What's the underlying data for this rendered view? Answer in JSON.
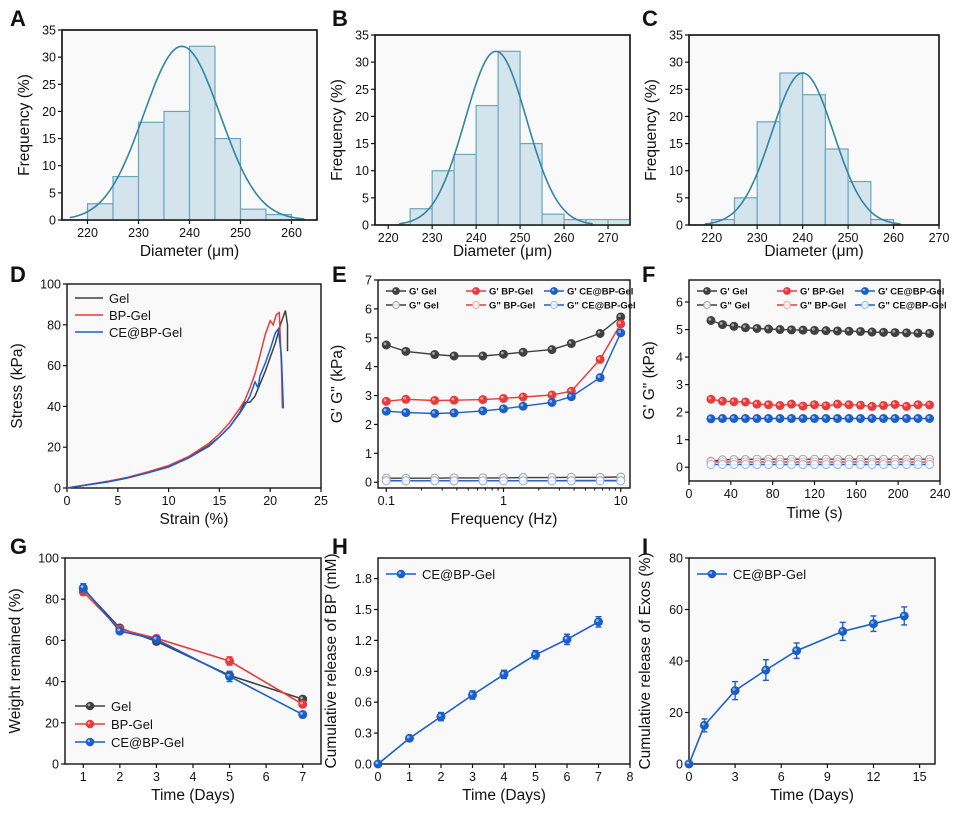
{
  "figure": {
    "panel_labels": [
      "A",
      "B",
      "C",
      "D",
      "E",
      "F",
      "G",
      "H",
      "I"
    ]
  },
  "colors": {
    "hist_fill": "#d3e4ec",
    "hist_edge": "#6aa6bd",
    "fit_curve": "#2f86a6",
    "gel": "#404040",
    "bp_gel": "#e83b3b",
    "ce_bp_gel": "#1b5fc9",
    "plot_bg": "#f9f9f9"
  },
  "chart_data": [
    {
      "id": "A",
      "type": "bar",
      "xlabel": "Diameter (μm)",
      "ylabel": "Frequency (%)",
      "xlim": [
        215,
        265
      ],
      "ylim": [
        0,
        35
      ],
      "xticks": [
        220,
        230,
        240,
        250,
        260
      ],
      "yticks": [
        0,
        5,
        10,
        15,
        20,
        25,
        30,
        35
      ],
      "bin_width": 5,
      "bins": [
        220,
        225,
        230,
        235,
        240,
        245,
        250,
        255
      ],
      "values": [
        3,
        8,
        18,
        20,
        32,
        15,
        2,
        1
      ],
      "fit": {
        "type": "gaussian",
        "mean": 238.5,
        "sd": 7.5,
        "peak": 32
      }
    },
    {
      "id": "B",
      "type": "bar",
      "xlabel": "Diameter (μm)",
      "ylabel": "Frequency (%)",
      "xlim": [
        217,
        275
      ],
      "ylim": [
        0,
        35
      ],
      "xticks": [
        220,
        230,
        240,
        250,
        260,
        270
      ],
      "yticks": [
        0,
        5,
        10,
        15,
        20,
        25,
        30,
        35
      ],
      "bin_width": 5,
      "bins": [
        225,
        230,
        235,
        240,
        245,
        250,
        255,
        260,
        265,
        270
      ],
      "values": [
        3,
        10,
        13,
        22,
        32,
        15,
        2,
        1,
        1,
        1
      ],
      "fit": {
        "type": "gaussian",
        "mean": 244.5,
        "sd": 7.0,
        "peak": 32
      }
    },
    {
      "id": "C",
      "type": "bar",
      "xlabel": "Diameter (μm)",
      "ylabel": "Frequency (%)",
      "xlim": [
        215,
        270
      ],
      "ylim": [
        0,
        35
      ],
      "xticks": [
        220,
        230,
        240,
        250,
        260,
        270
      ],
      "yticks": [
        0,
        5,
        10,
        15,
        20,
        25,
        30,
        35
      ],
      "bin_width": 5,
      "bins": [
        220,
        225,
        230,
        235,
        240,
        245,
        250,
        255
      ],
      "values": [
        1,
        5,
        19,
        28,
        24,
        14,
        8,
        1
      ],
      "fit": {
        "type": "gaussian",
        "mean": 240,
        "sd": 6.8,
        "peak": 28
      }
    },
    {
      "id": "D",
      "type": "line",
      "xlabel": "Strain (%)",
      "ylabel": "Stress (kPa)",
      "xlim": [
        0,
        25
      ],
      "ylim": [
        0,
        100
      ],
      "xticks": [
        0,
        5,
        10,
        15,
        20,
        25
      ],
      "yticks": [
        0,
        20,
        40,
        60,
        80,
        100
      ],
      "legend": "top-left",
      "series": [
        {
          "name": "Gel",
          "color_key": "gel",
          "x": [
            0,
            2,
            4,
            6,
            8,
            10,
            12,
            14,
            15,
            16,
            17,
            17.5,
            18,
            18.5,
            19,
            19.5,
            20,
            20.5,
            21,
            21.5,
            21.7,
            21.7
          ],
          "y": [
            0,
            1.5,
            3,
            5,
            7.5,
            10.5,
            15,
            21,
            25,
            30,
            37,
            42,
            42,
            45,
            51,
            57,
            64,
            71,
            80,
            87,
            80,
            67
          ]
        },
        {
          "name": "BP-Gel",
          "color_key": "bp_gel",
          "x": [
            0,
            2,
            4,
            6,
            8,
            10,
            12,
            14,
            15,
            16,
            17,
            17.5,
            18,
            18.5,
            19,
            19.5,
            20,
            20.3,
            20.6,
            20.9,
            21.1,
            21.2
          ],
          "y": [
            0,
            1.6,
            3.3,
            5.3,
            8,
            11,
            15.5,
            22,
            26.5,
            32,
            39,
            43,
            49,
            56,
            65,
            75,
            82,
            80,
            85,
            86,
            60,
            39
          ]
        },
        {
          "name": "CE@BP-Gel",
          "color_key": "ce_bp_gel",
          "x": [
            0,
            2,
            4,
            6,
            8,
            10,
            12,
            14,
            15,
            16,
            17,
            17.5,
            18,
            18.5,
            18.8,
            19,
            19.5,
            20,
            20.5,
            20.8,
            21.1,
            21.3
          ],
          "y": [
            0,
            1.5,
            3,
            5,
            7.5,
            10.3,
            14.8,
            20.5,
            25,
            30,
            36.5,
            40.5,
            45,
            52,
            49,
            55,
            61,
            68,
            76,
            78,
            65,
            39
          ]
        }
      ]
    },
    {
      "id": "E",
      "type": "line",
      "xlabel": "Frequency (Hz)",
      "ylabel": "G' G\" (kPa)",
      "xscale": "log",
      "xlim": [
        0.085,
        12
      ],
      "ylim": [
        -0.2,
        7
      ],
      "xticks": [
        0.1,
        1,
        10
      ],
      "xticklabels": [
        "0.1",
        "1",
        "10"
      ],
      "yticks": [
        0,
        1,
        2,
        3,
        4,
        5,
        6,
        7
      ],
      "legend": "top (2 rows)",
      "x": [
        0.1,
        0.147,
        0.259,
        0.379,
        0.667,
        1.0,
        1.47,
        2.59,
        3.79,
        6.67,
        10.0
      ],
      "series": [
        {
          "name": "G'  Gel",
          "color_key": "gel",
          "filled": true,
          "values": [
            4.75,
            4.53,
            4.42,
            4.37,
            4.37,
            4.43,
            4.5,
            4.59,
            4.8,
            5.15,
            5.72
          ]
        },
        {
          "name": "G'  BP-Gel",
          "color_key": "bp_gel",
          "filled": true,
          "values": [
            2.8,
            2.87,
            2.83,
            2.84,
            2.86,
            2.9,
            2.95,
            3.02,
            3.15,
            4.25,
            5.48
          ]
        },
        {
          "name": "G'  CE@BP-Gel",
          "color_key": "ce_bp_gel",
          "filled": true,
          "values": [
            2.46,
            2.41,
            2.38,
            2.4,
            2.47,
            2.54,
            2.63,
            2.76,
            2.96,
            3.62,
            5.17
          ]
        },
        {
          "name": "G\" Gel",
          "color_key": "gel",
          "filled": false,
          "values": [
            0.14,
            0.14,
            0.14,
            0.15,
            0.15,
            0.15,
            0.16,
            0.16,
            0.17,
            0.17,
            0.18
          ]
        },
        {
          "name": "G\" BP-Gel",
          "color_key": "bp_gel",
          "filled": false,
          "values": [
            0.06,
            0.05,
            0.05,
            0.05,
            0.05,
            0.05,
            0.05,
            0.05,
            0.06,
            0.06,
            0.06
          ]
        },
        {
          "name": "G\" CE@BP-Gel",
          "color_key": "ce_bp_gel",
          "filled": false,
          "values": [
            0.05,
            0.05,
            0.05,
            0.05,
            0.05,
            0.05,
            0.05,
            0.05,
            0.05,
            0.05,
            0.05
          ]
        }
      ]
    },
    {
      "id": "F",
      "type": "line",
      "xlabel": "Time (s)",
      "ylabel": "G' G\" (kPa)",
      "xlim": [
        0,
        240
      ],
      "ylim": [
        -0.5,
        6.8
      ],
      "xticks": [
        0,
        40,
        80,
        120,
        160,
        200,
        240
      ],
      "yticks": [
        0,
        1,
        2,
        3,
        4,
        5,
        6
      ],
      "legend": "top (2 rows)",
      "x": [
        21,
        32,
        43,
        54,
        65,
        76,
        87,
        98,
        109,
        120,
        131,
        142,
        153,
        164,
        175,
        186,
        197,
        208,
        219,
        230
      ],
      "series": [
        {
          "name": "G'  Gel",
          "color_key": "gel",
          "filled": true,
          "values": [
            5.33,
            5.18,
            5.12,
            5.07,
            5.04,
            5.02,
            5.0,
            4.99,
            4.98,
            4.97,
            4.96,
            4.95,
            4.94,
            4.93,
            4.91,
            4.9,
            4.89,
            4.88,
            4.87,
            4.86
          ]
        },
        {
          "name": "G'  BP-Gel",
          "color_key": "bp_gel",
          "filled": true,
          "values": [
            2.47,
            2.4,
            2.38,
            2.37,
            2.29,
            2.27,
            2.24,
            2.29,
            2.22,
            2.27,
            2.23,
            2.29,
            2.27,
            2.25,
            2.21,
            2.24,
            2.28,
            2.21,
            2.27,
            2.26
          ]
        },
        {
          "name": "G'  CE@BP-Gel",
          "color_key": "ce_bp_gel",
          "filled": true,
          "values": [
            1.76,
            1.77,
            1.77,
            1.77,
            1.77,
            1.77,
            1.77,
            1.77,
            1.77,
            1.77,
            1.77,
            1.77,
            1.77,
            1.77,
            1.77,
            1.77,
            1.77,
            1.77,
            1.77,
            1.77
          ]
        },
        {
          "name": "G\" Gel",
          "color_key": "gel",
          "filled": false,
          "values": [
            0.22,
            0.27,
            0.28,
            0.28,
            0.29,
            0.29,
            0.29,
            0.29,
            0.29,
            0.29,
            0.29,
            0.29,
            0.29,
            0.29,
            0.29,
            0.29,
            0.29,
            0.29,
            0.29,
            0.29
          ]
        },
        {
          "name": "G\" BP-Gel",
          "color_key": "bp_gel",
          "filled": false,
          "values": [
            0.19,
            0.19,
            0.19,
            0.19,
            0.19,
            0.19,
            0.19,
            0.19,
            0.19,
            0.19,
            0.19,
            0.19,
            0.19,
            0.19,
            0.19,
            0.19,
            0.19,
            0.19,
            0.19,
            0.19
          ]
        },
        {
          "name": "G\" CE@BP-Gel",
          "color_key": "ce_bp_gel",
          "filled": false,
          "values": [
            0.1,
            0.1,
            0.1,
            0.1,
            0.1,
            0.1,
            0.1,
            0.1,
            0.1,
            0.1,
            0.1,
            0.1,
            0.1,
            0.1,
            0.1,
            0.1,
            0.1,
            0.1,
            0.1,
            0.1
          ]
        }
      ]
    },
    {
      "id": "G",
      "type": "line",
      "xlabel": "Time (Days)",
      "ylabel": "Weight remained (%)",
      "xlim": [
        0.5,
        7.5
      ],
      "ylim": [
        0,
        100
      ],
      "xticks": [
        1,
        2,
        3,
        4,
        5,
        6,
        7
      ],
      "yticks": [
        0,
        20,
        40,
        60,
        80,
        100
      ],
      "legend": "bottom-left",
      "x": [
        1,
        2,
        3,
        5,
        7
      ],
      "series": [
        {
          "name": "Gel",
          "color_key": "gel",
          "values": [
            85,
            66,
            59.5,
            43,
            31.5
          ],
          "err": [
            1.5,
            1.2,
            1.2,
            1.5,
            1
          ]
        },
        {
          "name": "BP-Gel",
          "color_key": "bp_gel",
          "values": [
            83.5,
            65.5,
            61,
            50,
            29
          ],
          "err": [
            1.5,
            1.2,
            1.2,
            2,
            1.2
          ]
        },
        {
          "name": "CE@BP-Gel",
          "color_key": "ce_bp_gel",
          "values": [
            85.5,
            64.5,
            60.5,
            42.5,
            24
          ],
          "err": [
            2,
            1.2,
            1.2,
            2.5,
            1.5
          ]
        }
      ]
    },
    {
      "id": "H",
      "type": "line",
      "xlabel": "Time (Days)",
      "ylabel": "Cumulative release of BP (mM)",
      "xlim": [
        0,
        8
      ],
      "ylim": [
        0,
        2.0
      ],
      "xticks": [
        0,
        1,
        2,
        3,
        4,
        5,
        6,
        7,
        8
      ],
      "yticks": [
        0,
        0.3,
        0.6,
        0.9,
        1.2,
        1.5,
        1.8
      ],
      "yticklabels": [
        "0.0",
        "0.3",
        "0.6",
        "0.9",
        "1.2",
        "1.5",
        "1.8"
      ],
      "legend": "top-left",
      "x": [
        0,
        1,
        2,
        3,
        4,
        5,
        6,
        7
      ],
      "series": [
        {
          "name": "CE@BP-Gel",
          "color_key": "ce_bp_gel",
          "values": [
            0,
            0.25,
            0.46,
            0.67,
            0.87,
            1.06,
            1.21,
            1.38
          ],
          "err": [
            0,
            0.02,
            0.04,
            0.04,
            0.04,
            0.04,
            0.05,
            0.05
          ]
        }
      ]
    },
    {
      "id": "I",
      "type": "line",
      "xlabel": "Time (Days)",
      "ylabel": "Cumulative release of Exos (%)",
      "xlim": [
        0,
        16
      ],
      "ylim": [
        0,
        80
      ],
      "xticks": [
        0,
        3,
        6,
        9,
        12,
        15
      ],
      "yticks": [
        0,
        20,
        40,
        60,
        80
      ],
      "legend": "top-left",
      "x": [
        0,
        1,
        3,
        5,
        7,
        10,
        12,
        14
      ],
      "series": [
        {
          "name": "CE@BP-Gel",
          "color_key": "ce_bp_gel",
          "values": [
            0,
            15,
            28.5,
            36.5,
            44,
            51.5,
            54.5,
            57.5
          ],
          "err": [
            0,
            2.5,
            3.5,
            4,
            3,
            3.5,
            3,
            3.5
          ]
        }
      ]
    }
  ]
}
